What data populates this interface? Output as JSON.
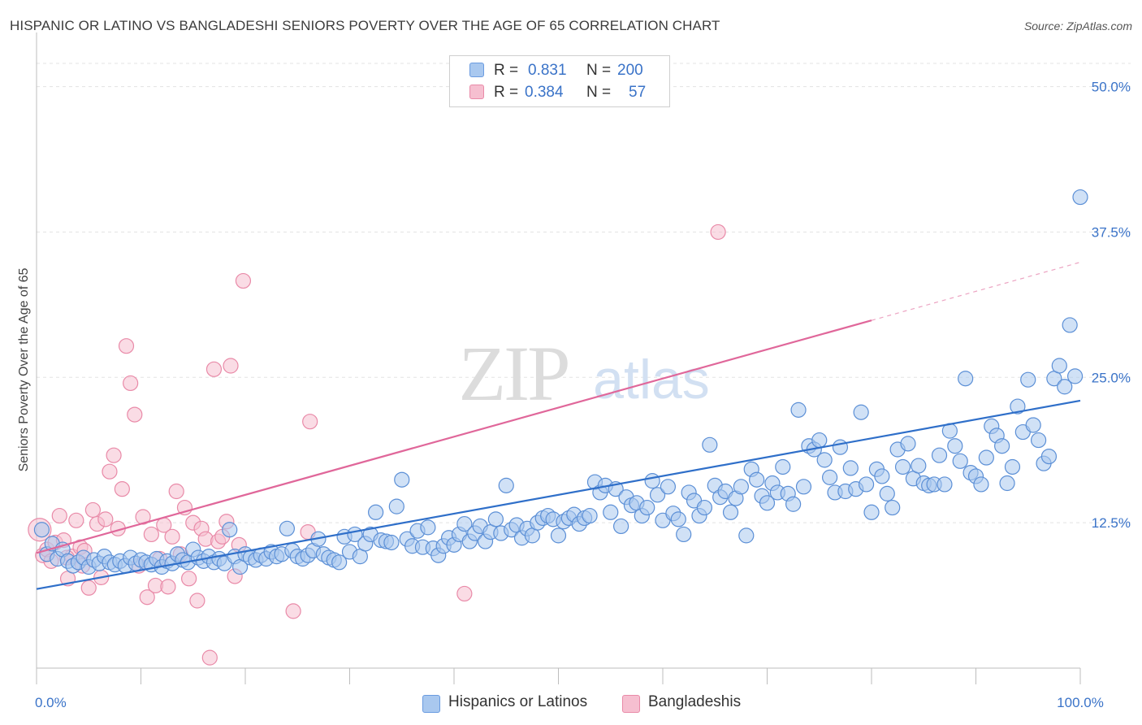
{
  "title": "HISPANIC OR LATINO VS BANGLADESHI SENIORS POVERTY OVER THE AGE OF 65 CORRELATION CHART",
  "source": "Source: ZipAtlas.com",
  "watermark": {
    "zip": "ZIP",
    "atlas": "atlas"
  },
  "legend": {
    "r_label": "R =",
    "n_label": "N =",
    "rows": [
      {
        "name": "Hispanics or Latinos",
        "r": "0.831",
        "n": "200",
        "fill": "#a9c8ef",
        "stroke": "#6a9be0"
      },
      {
        "name": "Bangladeshis",
        "r": "0.384",
        "n": "57",
        "fill": "#f6bfd0",
        "stroke": "#e98aa8"
      }
    ]
  },
  "colors": {
    "blue_fill": "#a9c8ef",
    "blue_stroke": "#5b8fd6",
    "blue_line": "#2f6fc9",
    "pink_fill": "#f6bfd0",
    "pink_stroke": "#e98aa8",
    "pink_line": "#e0679a",
    "tick_text": "#3a73c8",
    "grid": "#e3e3e3"
  },
  "chart_data": {
    "type": "scatter",
    "ylabel": "Seniors Poverty Over the Age of 65",
    "xlabel": "",
    "xlim": [
      0,
      100
    ],
    "ylim": [
      0,
      52
    ],
    "x_tick_labels": [
      {
        "v": 0,
        "label": "0.0%"
      },
      {
        "v": 100,
        "label": "100.0%"
      }
    ],
    "y_tick_labels": [
      {
        "v": 12.5,
        "label": "12.5%"
      },
      {
        "v": 25.0,
        "label": "25.0%"
      },
      {
        "v": 37.5,
        "label": "37.5%"
      },
      {
        "v": 50.0,
        "label": "50.0%"
      }
    ],
    "grid": true,
    "legend_position": "top-center",
    "series": [
      {
        "name": "Hispanics or Latinos",
        "color": "#a9c8ef",
        "trend": {
          "x1": 0,
          "y1": 6.8,
          "x2": 100,
          "y2": 23.0
        },
        "points": [
          [
            0.5,
            11.9
          ],
          [
            1,
            9.8
          ],
          [
            1.5,
            10.7
          ],
          [
            2,
            9.4
          ],
          [
            2.5,
            10.2
          ],
          [
            3,
            9.2
          ],
          [
            3.5,
            8.8
          ],
          [
            4,
            9.1
          ],
          [
            4.5,
            9.5
          ],
          [
            5,
            8.7
          ],
          [
            5.5,
            9.3
          ],
          [
            6,
            9.0
          ],
          [
            6.5,
            9.6
          ],
          [
            7,
            9.1
          ],
          [
            7.5,
            8.9
          ],
          [
            8,
            9.2
          ],
          [
            8.5,
            8.8
          ],
          [
            9,
            9.5
          ],
          [
            9.5,
            9.0
          ],
          [
            10,
            9.3
          ],
          [
            10.5,
            9.1
          ],
          [
            11,
            8.9
          ],
          [
            11.5,
            9.4
          ],
          [
            12,
            8.7
          ],
          [
            12.5,
            9.2
          ],
          [
            13,
            9.0
          ],
          [
            13.5,
            9.8
          ],
          [
            14,
            9.3
          ],
          [
            14.5,
            9.1
          ],
          [
            15,
            10.2
          ],
          [
            15.5,
            9.5
          ],
          [
            16,
            9.2
          ],
          [
            16.5,
            9.6
          ],
          [
            17,
            9.1
          ],
          [
            17.5,
            9.4
          ],
          [
            18,
            9.0
          ],
          [
            18.5,
            11.9
          ],
          [
            19,
            9.6
          ],
          [
            19.5,
            8.7
          ],
          [
            20,
            9.8
          ],
          [
            20.5,
            9.5
          ],
          [
            21,
            9.3
          ],
          [
            21.5,
            9.7
          ],
          [
            22,
            9.4
          ],
          [
            22.5,
            10.0
          ],
          [
            23,
            9.6
          ],
          [
            23.5,
            9.8
          ],
          [
            24,
            12.0
          ],
          [
            24.5,
            10.1
          ],
          [
            25,
            9.6
          ],
          [
            25.5,
            9.4
          ],
          [
            26,
            9.7
          ],
          [
            26.5,
            10.1
          ],
          [
            27,
            11.1
          ],
          [
            27.5,
            9.8
          ],
          [
            28,
            9.5
          ],
          [
            28.5,
            9.3
          ],
          [
            29,
            9.1
          ],
          [
            29.5,
            11.3
          ],
          [
            30,
            10.0
          ],
          [
            30.5,
            11.5
          ],
          [
            31,
            9.6
          ],
          [
            31.5,
            10.7
          ],
          [
            32,
            11.5
          ],
          [
            32.5,
            13.4
          ],
          [
            33,
            11.0
          ],
          [
            33.5,
            10.9
          ],
          [
            34,
            10.8
          ],
          [
            34.5,
            13.9
          ],
          [
            35,
            16.2
          ],
          [
            35.5,
            11.1
          ],
          [
            36,
            10.5
          ],
          [
            36.5,
            11.8
          ],
          [
            37,
            10.4
          ],
          [
            37.5,
            12.1
          ],
          [
            38,
            10.3
          ],
          [
            38.5,
            9.7
          ],
          [
            39,
            10.5
          ],
          [
            39.5,
            11.2
          ],
          [
            40,
            10.6
          ],
          [
            40.5,
            11.5
          ],
          [
            41,
            12.4
          ],
          [
            41.5,
            10.9
          ],
          [
            42,
            11.6
          ],
          [
            42.5,
            12.2
          ],
          [
            43,
            10.9
          ],
          [
            43.5,
            11.7
          ],
          [
            44,
            12.8
          ],
          [
            44.5,
            11.6
          ],
          [
            45,
            15.7
          ],
          [
            45.5,
            11.9
          ],
          [
            46,
            12.3
          ],
          [
            46.5,
            11.2
          ],
          [
            47,
            12.0
          ],
          [
            47.5,
            11.4
          ],
          [
            48,
            12.5
          ],
          [
            48.5,
            12.9
          ],
          [
            49,
            13.1
          ],
          [
            49.5,
            12.8
          ],
          [
            50,
            11.4
          ],
          [
            50.5,
            12.6
          ],
          [
            51,
            12.9
          ],
          [
            51.5,
            13.2
          ],
          [
            52,
            12.4
          ],
          [
            52.5,
            12.9
          ],
          [
            53,
            13.1
          ],
          [
            53.5,
            16.0
          ],
          [
            54,
            15.1
          ],
          [
            54.5,
            15.7
          ],
          [
            55,
            13.4
          ],
          [
            55.5,
            15.4
          ],
          [
            56,
            12.2
          ],
          [
            56.5,
            14.7
          ],
          [
            57,
            14.0
          ],
          [
            57.5,
            14.2
          ],
          [
            58,
            13.1
          ],
          [
            58.5,
            13.8
          ],
          [
            59,
            16.1
          ],
          [
            59.5,
            14.9
          ],
          [
            60,
            12.7
          ],
          [
            60.5,
            15.6
          ],
          [
            61,
            13.3
          ],
          [
            61.5,
            12.8
          ],
          [
            62,
            11.5
          ],
          [
            62.5,
            15.1
          ],
          [
            63,
            14.4
          ],
          [
            63.5,
            13.1
          ],
          [
            64,
            13.8
          ],
          [
            64.5,
            19.2
          ],
          [
            65,
            15.7
          ],
          [
            65.5,
            14.7
          ],
          [
            66,
            15.2
          ],
          [
            66.5,
            13.4
          ],
          [
            67,
            14.6
          ],
          [
            67.5,
            15.6
          ],
          [
            68,
            11.4
          ],
          [
            68.5,
            17.1
          ],
          [
            69,
            16.2
          ],
          [
            69.5,
            14.8
          ],
          [
            70,
            14.2
          ],
          [
            70.5,
            15.9
          ],
          [
            71,
            15.1
          ],
          [
            71.5,
            17.3
          ],
          [
            72,
            15.0
          ],
          [
            72.5,
            14.1
          ],
          [
            73,
            22.2
          ],
          [
            73.5,
            15.6
          ],
          [
            74,
            19.1
          ],
          [
            74.5,
            18.8
          ],
          [
            75,
            19.6
          ],
          [
            75.5,
            17.9
          ],
          [
            76,
            16.4
          ],
          [
            76.5,
            15.1
          ],
          [
            77,
            19.0
          ],
          [
            77.5,
            15.2
          ],
          [
            78,
            17.2
          ],
          [
            78.5,
            15.4
          ],
          [
            79,
            22.0
          ],
          [
            79.5,
            15.8
          ],
          [
            80,
            13.4
          ],
          [
            80.5,
            17.1
          ],
          [
            81,
            16.5
          ],
          [
            81.5,
            15.0
          ],
          [
            82,
            13.8
          ],
          [
            82.5,
            18.8
          ],
          [
            83,
            17.3
          ],
          [
            83.5,
            19.3
          ],
          [
            84,
            16.3
          ],
          [
            84.5,
            17.4
          ],
          [
            85,
            15.9
          ],
          [
            85.5,
            15.7
          ],
          [
            86,
            15.8
          ],
          [
            86.5,
            18.3
          ],
          [
            87,
            15.8
          ],
          [
            87.5,
            20.4
          ],
          [
            88,
            19.1
          ],
          [
            88.5,
            17.8
          ],
          [
            89,
            24.9
          ],
          [
            89.5,
            16.8
          ],
          [
            90,
            16.5
          ],
          [
            90.5,
            15.8
          ],
          [
            91,
            18.1
          ],
          [
            91.5,
            20.8
          ],
          [
            92,
            20.0
          ],
          [
            92.5,
            19.1
          ],
          [
            93,
            15.9
          ],
          [
            93.5,
            17.3
          ],
          [
            94,
            22.5
          ],
          [
            94.5,
            20.3
          ],
          [
            95,
            24.8
          ],
          [
            95.5,
            20.9
          ],
          [
            96,
            19.6
          ],
          [
            96.5,
            17.6
          ],
          [
            97,
            18.2
          ],
          [
            97.5,
            24.9
          ],
          [
            98,
            26.0
          ],
          [
            98.5,
            24.2
          ],
          [
            99,
            29.5
          ],
          [
            99.5,
            25.1
          ],
          [
            100,
            40.5
          ]
        ]
      },
      {
        "name": "Bangladeshis",
        "color": "#f6bfd0",
        "trend": {
          "x1": 0,
          "y1": 9.9,
          "x2": 80,
          "y2": 29.9,
          "dash_to_x": 100,
          "dash_to_y": 34.9
        },
        "points": [
          [
            0.3,
            11.9
          ],
          [
            0.6,
            9.7
          ],
          [
            1,
            10.2
          ],
          [
            1.4,
            9.2
          ],
          [
            1.8,
            10.8
          ],
          [
            2.2,
            13.1
          ],
          [
            2.6,
            11.0
          ],
          [
            3,
            7.7
          ],
          [
            3.4,
            9.6
          ],
          [
            3.8,
            12.7
          ],
          [
            4.2,
            10.4
          ],
          [
            4.6,
            10.1
          ],
          [
            5,
            6.9
          ],
          [
            5.4,
            13.6
          ],
          [
            5.8,
            12.4
          ],
          [
            6.2,
            7.8
          ],
          [
            6.6,
            12.8
          ],
          [
            7,
            16.9
          ],
          [
            7.4,
            18.3
          ],
          [
            7.8,
            12.0
          ],
          [
            8.2,
            15.4
          ],
          [
            8.6,
            27.7
          ],
          [
            9,
            24.5
          ],
          [
            9.4,
            21.8
          ],
          [
            9.8,
            8.8
          ],
          [
            10.2,
            13.0
          ],
          [
            10.6,
            6.1
          ],
          [
            11,
            11.5
          ],
          [
            11.4,
            7.1
          ],
          [
            11.8,
            9.4
          ],
          [
            12.2,
            12.3
          ],
          [
            12.6,
            7.0
          ],
          [
            13,
            11.3
          ],
          [
            13.4,
            15.2
          ],
          [
            13.8,
            9.8
          ],
          [
            14.2,
            13.8
          ],
          [
            14.6,
            7.7
          ],
          [
            15,
            12.5
          ],
          [
            15.4,
            5.8
          ],
          [
            15.8,
            12.0
          ],
          [
            16.2,
            11.1
          ],
          [
            16.6,
            0.9
          ],
          [
            17,
            25.7
          ],
          [
            17.4,
            10.9
          ],
          [
            17.8,
            11.3
          ],
          [
            18.2,
            12.6
          ],
          [
            18.6,
            26.0
          ],
          [
            19,
            7.9
          ],
          [
            19.4,
            10.6
          ],
          [
            19.8,
            33.3
          ],
          [
            24.6,
            4.9
          ],
          [
            26,
            11.7
          ],
          [
            26.2,
            21.2
          ],
          [
            41,
            6.4
          ],
          [
            65.3,
            37.5
          ],
          [
            4.4,
            8.8
          ],
          [
            2.9,
            9.5
          ]
        ]
      }
    ]
  }
}
